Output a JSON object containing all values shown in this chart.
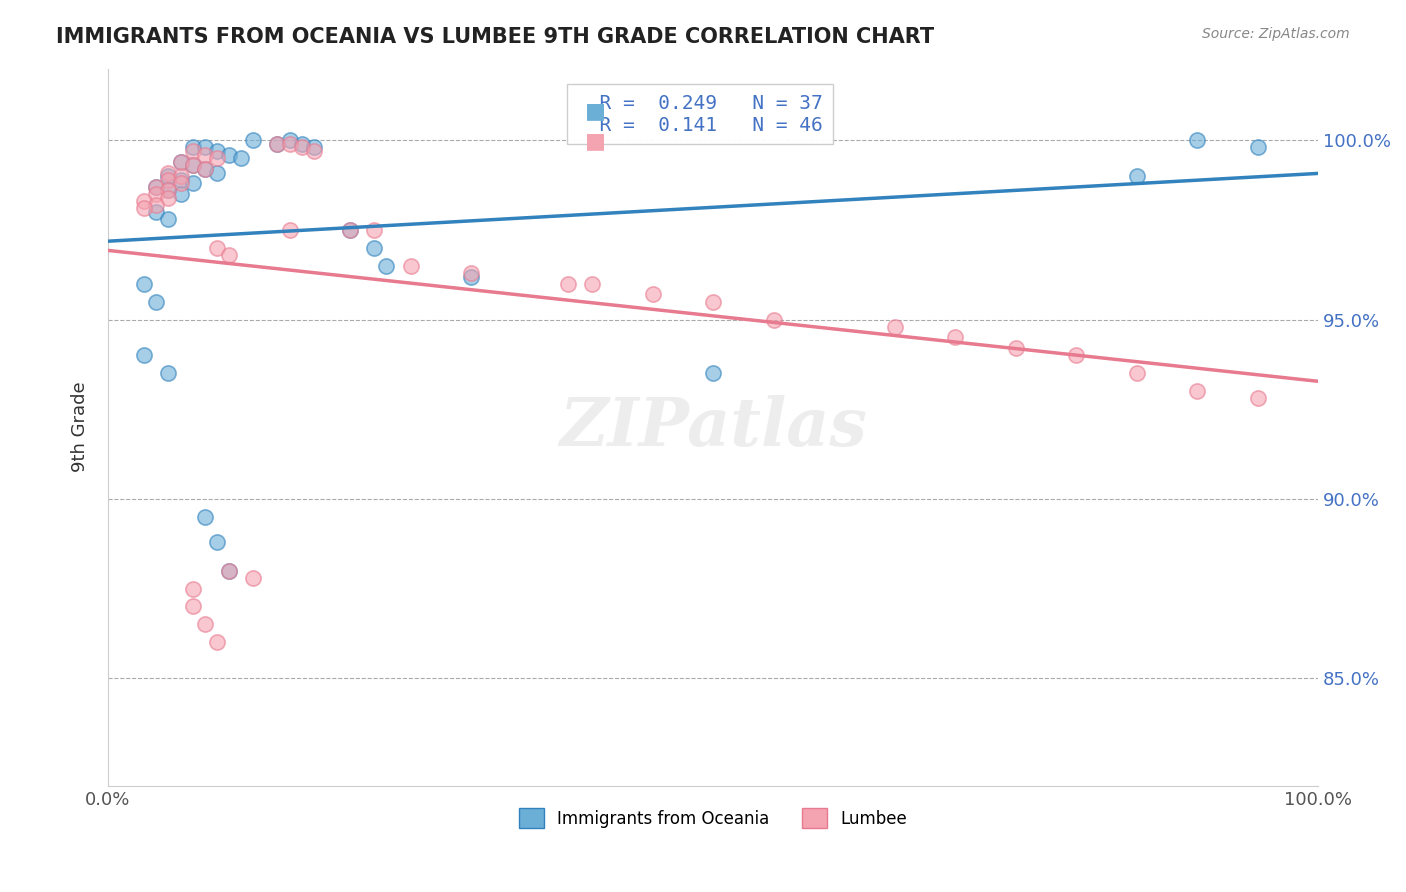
{
  "title": "IMMIGRANTS FROM OCEANIA VS LUMBEE 9TH GRADE CORRELATION CHART",
  "source_text": "Source: ZipAtlas.com",
  "xlabel": "",
  "ylabel": "9th Grade",
  "xlim": [
    0.0,
    1.0
  ],
  "ylim": [
    0.82,
    1.02
  ],
  "ytick_labels": [
    "85.0%",
    "90.0%",
    "95.0%",
    "100.0%"
  ],
  "ytick_values": [
    0.85,
    0.9,
    0.95,
    1.0
  ],
  "xtick_labels": [
    "0.0%",
    "100.0%"
  ],
  "xtick_values": [
    0.0,
    1.0
  ],
  "legend_label1": "Immigrants from Oceania",
  "legend_label2": "Lumbee",
  "R1": 0.249,
  "N1": 37,
  "R2": 0.141,
  "N2": 46,
  "blue_color": "#6baed6",
  "pink_color": "#f4a3b0",
  "blue_line_color": "#3182bd",
  "pink_line_color": "#e87a8f",
  "watermark": "ZIPatlas",
  "blue_x": [
    0.12,
    0.14,
    0.15,
    0.16,
    0.17,
    0.07,
    0.08,
    0.09,
    0.1,
    0.11,
    0.06,
    0.07,
    0.08,
    0.09,
    0.05,
    0.06,
    0.07,
    0.04,
    0.05,
    0.06,
    0.04,
    0.05,
    0.03,
    0.04,
    0.03,
    0.05,
    0.2,
    0.22,
    0.23,
    0.08,
    0.09,
    0.1,
    0.3,
    0.5,
    0.85,
    0.9,
    0.95
  ],
  "blue_y": [
    1.0,
    0.999,
    1.0,
    0.999,
    0.998,
    0.998,
    0.998,
    0.997,
    0.996,
    0.995,
    0.994,
    0.993,
    0.992,
    0.991,
    0.99,
    0.989,
    0.988,
    0.987,
    0.986,
    0.985,
    0.98,
    0.978,
    0.96,
    0.955,
    0.94,
    0.935,
    0.975,
    0.97,
    0.965,
    0.895,
    0.888,
    0.88,
    0.962,
    0.935,
    0.99,
    1.0,
    0.998
  ],
  "pink_x": [
    0.14,
    0.15,
    0.16,
    0.17,
    0.07,
    0.08,
    0.09,
    0.06,
    0.07,
    0.08,
    0.05,
    0.06,
    0.05,
    0.06,
    0.04,
    0.05,
    0.04,
    0.05,
    0.03,
    0.04,
    0.03,
    0.22,
    0.09,
    0.1,
    0.5,
    0.55,
    0.65,
    0.7,
    0.75,
    0.8,
    0.85,
    0.9,
    0.95,
    0.38,
    0.2,
    0.15,
    0.25,
    0.3,
    0.4,
    0.45,
    0.1,
    0.12,
    0.07,
    0.07,
    0.08,
    0.09
  ],
  "pink_y": [
    0.999,
    0.999,
    0.998,
    0.997,
    0.997,
    0.996,
    0.995,
    0.994,
    0.993,
    0.992,
    0.991,
    0.99,
    0.989,
    0.988,
    0.987,
    0.986,
    0.985,
    0.984,
    0.983,
    0.982,
    0.981,
    0.975,
    0.97,
    0.968,
    0.955,
    0.95,
    0.948,
    0.945,
    0.942,
    0.94,
    0.935,
    0.93,
    0.928,
    0.96,
    0.975,
    0.975,
    0.965,
    0.963,
    0.96,
    0.957,
    0.88,
    0.878,
    0.875,
    0.87,
    0.865,
    0.86
  ]
}
